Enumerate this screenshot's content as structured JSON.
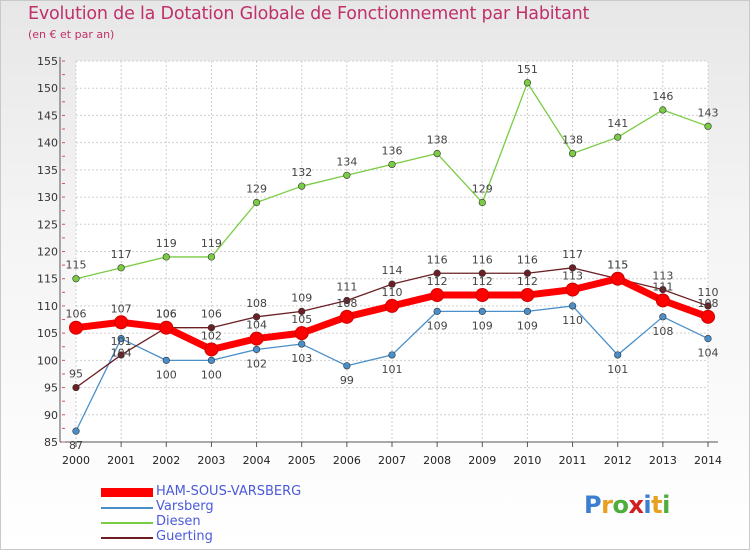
{
  "title": "Evolution de la Dotation Globale de Fonctionnement par Habitant",
  "subtitle": "(en € et par an)",
  "logo_text": "Proxiti",
  "chart_data": {
    "type": "line",
    "title": "Evolution de la Dotation Globale de Fonctionnement par Habitant",
    "subtitle": "(en € et par an)",
    "x": [
      "2000",
      "2001",
      "2002",
      "2003",
      "2004",
      "2005",
      "2006",
      "2007",
      "2008",
      "2009",
      "2010",
      "2011",
      "2012",
      "2013",
      "2014"
    ],
    "ylim": [
      85,
      155
    ],
    "yticks": [
      85,
      90,
      95,
      100,
      105,
      110,
      115,
      120,
      125,
      130,
      135,
      140,
      145,
      150,
      155
    ],
    "grid": true,
    "legend_position": "bottom-left",
    "series": [
      {
        "name": "Varsberg",
        "color": "#4a8fc9",
        "values": [
          87,
          104,
          100,
          100,
          102,
          103,
          99,
          101,
          109,
          109,
          109,
          110,
          101,
          108,
          104
        ],
        "labels": [
          "87",
          "104",
          "100",
          "100",
          "102",
          "103",
          "99",
          "101",
          "109",
          "109",
          "109",
          "110",
          "101",
          "108",
          "104"
        ]
      },
      {
        "name": "Diesen",
        "color": "#7acc44",
        "values": [
          115,
          117,
          119,
          119,
          129,
          132,
          134,
          136,
          138,
          129,
          151,
          138,
          141,
          146,
          143
        ],
        "labels": [
          "115",
          "117",
          "119",
          "119",
          "129",
          "132",
          "134",
          "136",
          "138",
          "129",
          "151",
          "138",
          "141",
          "146",
          "143"
        ]
      },
      {
        "name": "Guerting",
        "color": "#6b1f24",
        "values": [
          95,
          101,
          106,
          106,
          108,
          109,
          111,
          114,
          116,
          116,
          116,
          117,
          115,
          113,
          110
        ],
        "labels": [
          "95",
          "101",
          "106",
          "106",
          "108",
          "109",
          "111",
          "114",
          "116",
          "116",
          "116",
          "117",
          "115",
          "113",
          "110"
        ]
      },
      {
        "name": "HAM-SOUS-VARSBERG",
        "color": "#ff0000",
        "values": [
          106,
          107,
          106,
          102,
          104,
          105,
          108,
          110,
          112,
          112,
          112,
          113,
          115,
          111,
          108
        ],
        "labels": [
          "106",
          "107",
          "106",
          "102",
          "104",
          "105",
          "108",
          "110",
          "112",
          "112",
          "112",
          "113",
          "115",
          "111",
          "108"
        ]
      }
    ],
    "legend_order": [
      "HAM-SOUS-VARSBERG",
      "Varsberg",
      "Diesen",
      "Guerting"
    ]
  }
}
